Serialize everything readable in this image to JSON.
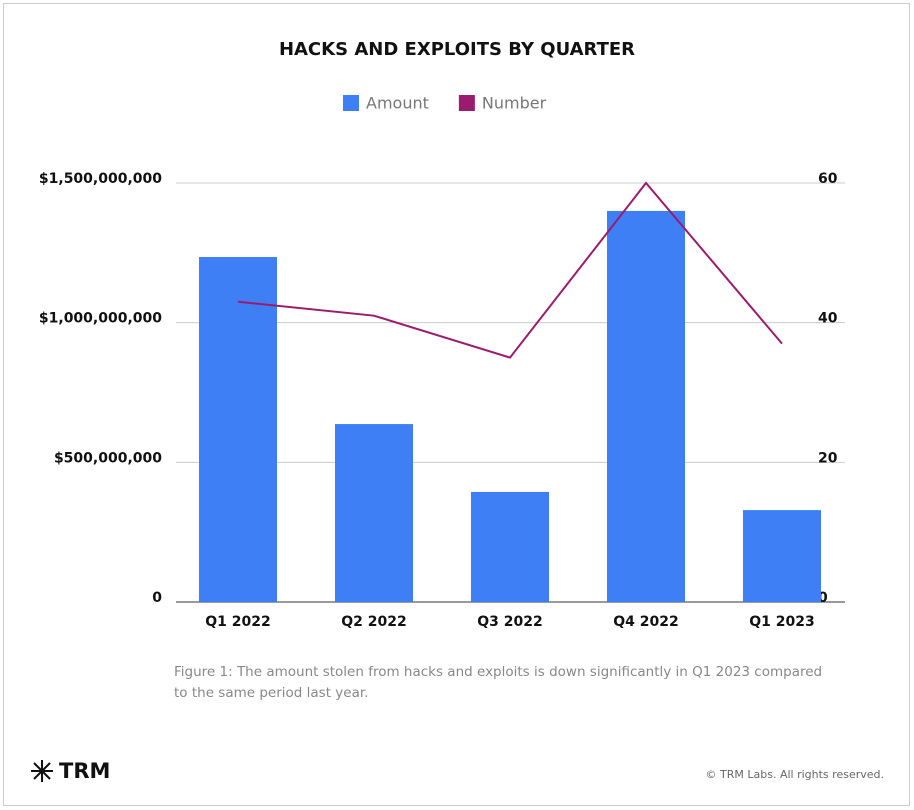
{
  "chart_data": {
    "type": "bar",
    "title": "HACKS AND EXPLOITS BY QUARTER",
    "categories": [
      "Q1 2022",
      "Q2 2022",
      "Q3 2022",
      "Q4 2022",
      "Q1 2023"
    ],
    "series": [
      {
        "name": "Amount",
        "type": "bar",
        "color": "#3e7ff5",
        "values": [
          1235000000,
          637000000,
          394000000,
          1400000000,
          329000000
        ]
      },
      {
        "name": "Number",
        "type": "line",
        "axis": "y2",
        "color": "#9b1c6e",
        "values": [
          43,
          41,
          35,
          60,
          37
        ]
      }
    ],
    "ylim": [
      0,
      1500000000
    ],
    "yticks": [
      0,
      {
        "value": 500000000,
        "label": "$500,000,000"
      },
      {
        "value": 1000000000,
        "label": "$1,000,000,000"
      },
      {
        "value": 1500000000,
        "label": "$1,500,000,000"
      }
    ],
    "y2lim": [
      0,
      60
    ],
    "y2ticks": [
      0,
      20,
      40,
      60
    ],
    "grid": true,
    "legend": "top"
  },
  "caption": "Figure 1: The amount stolen from hacks and exploits is down significantly in Q1 2023 compared to the same period last year.",
  "brand": "TRM",
  "copyright": "© TRM Labs. All rights reserved."
}
